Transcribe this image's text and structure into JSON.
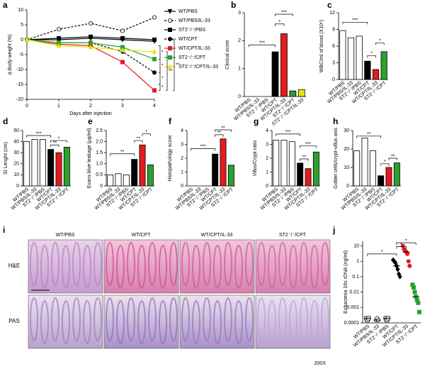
{
  "chart_data": [
    {
      "panel": "a",
      "type": "line",
      "ylabel": "Δ Body weight (%)",
      "xlabel": "Days after injection",
      "x": [
        0,
        1,
        2,
        3,
        4
      ],
      "xlim": [
        0,
        4
      ],
      "xticks": [
        0,
        1,
        2,
        3,
        4
      ],
      "ylim": [
        -20,
        10
      ],
      "yticks": [
        -20,
        -15,
        -10,
        -5,
        0,
        5,
        10
      ],
      "series": [
        {
          "name": "WT/PBS",
          "color": "#000000",
          "marker": "triangle-down",
          "dash": false,
          "values": [
            0,
            0,
            0.5,
            0,
            -0.5
          ]
        },
        {
          "name": "WT/PBS/IL-33",
          "color": "#000000",
          "marker": "circle-open",
          "dash": true,
          "values": [
            0,
            3.5,
            5.5,
            3,
            7.5
          ]
        },
        {
          "name": "ST2⁻/⁻/PBS",
          "color": "#000000",
          "marker": "square",
          "dash": false,
          "values": [
            0,
            0.5,
            1,
            0.5,
            0
          ]
        },
        {
          "name": "WT/CPT",
          "color": "#000000",
          "marker": "circle",
          "dash": true,
          "values": [
            0,
            -1,
            -1,
            -4,
            -11
          ]
        },
        {
          "name": "WT/CPT/IL-33",
          "color": "#e41a1c",
          "marker": "square",
          "dash": false,
          "values": [
            0,
            -1.5,
            -2,
            -7.5,
            -17
          ]
        },
        {
          "name": "ST2⁻/⁻/CPT",
          "color": "#2ca02c",
          "marker": "square",
          "dash": false,
          "values": [
            0,
            -1,
            -1,
            -2.5,
            -6.5
          ]
        },
        {
          "name": "ST2⁻/⁻/CPT/IL-33",
          "color": "#e6e600",
          "marker": "triangle",
          "dash": false,
          "values": [
            0,
            -2,
            -2.5,
            -3.5,
            -4
          ]
        }
      ],
      "significance": [
        "*",
        "*",
        "*",
        "*",
        "**",
        "**"
      ]
    },
    {
      "panel": "b",
      "type": "bar",
      "ylabel": "Clinical score",
      "ylim": [
        0,
        3
      ],
      "yticks": [
        0,
        1,
        2,
        3
      ],
      "categories": [
        "WT/PBS",
        "WT/PBS/IL-33",
        "ST2⁻/⁻/PBS",
        "WT/CPT",
        "WT/CPT/IL-33",
        "ST2⁻/⁻/CPT",
        "ST2⁻/⁻/CPT/IL-33"
      ],
      "values": [
        0,
        0,
        0,
        1.6,
        2.25,
        0.2,
        0.25
      ],
      "colors": [
        "#ffffff",
        "#ffffff",
        "#ffffff",
        "#000000",
        "#e41a1c",
        "#2ca02c",
        "#e6e600"
      ],
      "significance": [
        "***",
        "*",
        "***"
      ]
    },
    {
      "panel": "c",
      "type": "bar",
      "ylabel": "WBC/ml of blood (X10⁶)",
      "ylim": [
        0,
        12
      ],
      "yticks": [
        0,
        3,
        6,
        9,
        12
      ],
      "categories": [
        "WT/PBS",
        "WT/PBS/IL-33",
        "ST2⁻/⁻/PBS",
        "WT/CPT",
        "WT/CPT/IL-33",
        "ST2⁻/⁻/CPT"
      ],
      "values": [
        8.8,
        7.5,
        7.8,
        3.3,
        1.8,
        5.0
      ],
      "colors": [
        "#ffffff",
        "#ffffff",
        "#ffffff",
        "#000000",
        "#e41a1c",
        "#2ca02c"
      ],
      "significance": [
        "***",
        "*",
        "*"
      ]
    },
    {
      "panel": "d",
      "type": "bar",
      "ylabel": "SI Lenght (cm)",
      "ylim": [
        0,
        50
      ],
      "yticks": [
        0,
        10,
        20,
        30,
        40,
        50
      ],
      "categories": [
        "WT/PBS",
        "WT/PBS/IL-33",
        "ST2⁻/⁻/PBS",
        "WT/CPT",
        "WT/CPT/IL-33",
        "ST2⁻/⁻/CPT"
      ],
      "values": [
        40,
        42,
        42,
        33,
        30,
        35
      ],
      "colors": [
        "#ffffff",
        "#ffffff",
        "#ffffff",
        "#000000",
        "#e41a1c",
        "#2ca02c"
      ],
      "significance": [
        "***",
        "**",
        "*"
      ]
    },
    {
      "panel": "e",
      "type": "bar",
      "ylabel": "Evans blue leakage (μg/ml)",
      "ylim": [
        0,
        2.5
      ],
      "yticks": [
        0,
        0.5,
        {
          "value": 1,
          "label": "1.0"
        },
        1.5,
        {
          "value": 2,
          "label": "2.0"
        },
        2.5
      ],
      "categories": [
        "WT/PBS",
        "WT/PBS/IL-33",
        "ST2⁻/⁻/PBS",
        "WT/CPT",
        "WT/CPT/IL-33",
        "ST2⁻/⁻/CPT"
      ],
      "values": [
        0.5,
        0.55,
        0.5,
        1.2,
        1.85,
        0.95
      ],
      "colors": [
        "#ffffff",
        "#ffffff",
        "#ffffff",
        "#000000",
        "#e41a1c",
        "#2ca02c"
      ],
      "significance": [
        "**",
        "**",
        "*"
      ]
    },
    {
      "panel": "f",
      "type": "bar",
      "ylabel": "Histopathology score",
      "ylim": [
        0,
        4
      ],
      "yticks": [
        0,
        1,
        2,
        3,
        4
      ],
      "categories": [
        "WT/PBS",
        "WT/PBS/IL-33",
        "ST2⁻/⁻/PBS",
        "WT/CPT",
        "WT/CPT/IL-33",
        "ST2⁻/⁻/CPT"
      ],
      "values": [
        0,
        0,
        0,
        2.3,
        3.4,
        1.5
      ],
      "colors": [
        "#ffffff",
        "#ffffff",
        "#ffffff",
        "#000000",
        "#e41a1c",
        "#2ca02c"
      ],
      "significance": [
        "***",
        "**",
        "**"
      ]
    },
    {
      "panel": "g",
      "type": "bar",
      "ylabel": "Villus/Crypt ratio",
      "ylim": [
        0,
        4
      ],
      "yticks": [
        0,
        1,
        2,
        3,
        4
      ],
      "categories": [
        "WT/PBS",
        "WT/PBS/IL-33",
        "ST2⁻/⁻/PBS",
        "WT/CPT",
        "WT/CPT/IL-33",
        "ST2⁻/⁻/CPT"
      ],
      "values": [
        3.3,
        3.3,
        3.2,
        1.65,
        1.25,
        2.45
      ],
      "colors": [
        "#ffffff",
        "#ffffff",
        "#ffffff",
        "#000000",
        "#e41a1c",
        "#2ca02c"
      ],
      "significance": [
        "***",
        "**",
        "***"
      ]
    },
    {
      "panel": "h",
      "type": "bar",
      "ylabel": "Goblet cells/crypt-villus axis",
      "ylim": [
        0,
        30
      ],
      "yticks": [
        0,
        10,
        20,
        30
      ],
      "categories": [
        "WT/PBS",
        "WT/PBS/IL-33",
        "ST2⁻/⁻/PBS",
        "WT/CPT",
        "WT/CPT/IL-33",
        "ST2⁻/⁻/CPT"
      ],
      "values": [
        19,
        26,
        19,
        5.5,
        10,
        12.5
      ],
      "colors": [
        "#ffffff",
        "#ffffff",
        "#ffffff",
        "#000000",
        "#e41a1c",
        "#2ca02c"
      ],
      "significance": [
        "**",
        "*",
        "**"
      ]
    },
    {
      "panel": "j",
      "type": "dot",
      "ylabel": "Eubacteria 16s rDNA (ng/ml)",
      "log": true,
      "ylim": [
        0.0001,
        20
      ],
      "yticks": [
        0.0001,
        0.001,
        0.01,
        0.1,
        1,
        10
      ],
      "categories": [
        "WT/PBS",
        "WT/PBS/IL-33",
        "ST2⁻/⁻/PBS",
        "WT/CPT",
        "WT/CPT/IL-33",
        "ST2⁻/⁻/CPT"
      ],
      "colors": [
        "#000000",
        "#000000",
        "#000000",
        "#000000",
        "#e41a1c",
        "#2ca02c"
      ],
      "markers": [
        "square-open",
        "circle-open",
        "square-open",
        "diamond",
        "circle",
        "square"
      ],
      "points": [
        [
          0.0002,
          0.00015,
          0.0002
        ],
        [
          0.00015,
          0.0002,
          0.00015
        ],
        [
          0.0002,
          0.00015,
          0.0002
        ],
        [
          1.2,
          1,
          0.8,
          0.5,
          0.3,
          0.15,
          0.1
        ],
        [
          10,
          6,
          5,
          4,
          3,
          1,
          0.5
        ],
        [
          0.03,
          0.02,
          0.01,
          0.005,
          0.003,
          0.002,
          0.0005
        ]
      ],
      "medians": [
        0.0002,
        0.00015,
        0.0002,
        0.5,
        4,
        0.005
      ],
      "significance": [
        "*",
        "*",
        "*"
      ]
    }
  ],
  "image_panel": {
    "panel": "i",
    "columns": [
      "WT/PBS",
      "WT/CPT",
      "WT/CPT/IL-33",
      "ST2⁻/⁻/CPT"
    ],
    "rows": [
      "H&E",
      "PAS"
    ],
    "magnification": "200X"
  }
}
